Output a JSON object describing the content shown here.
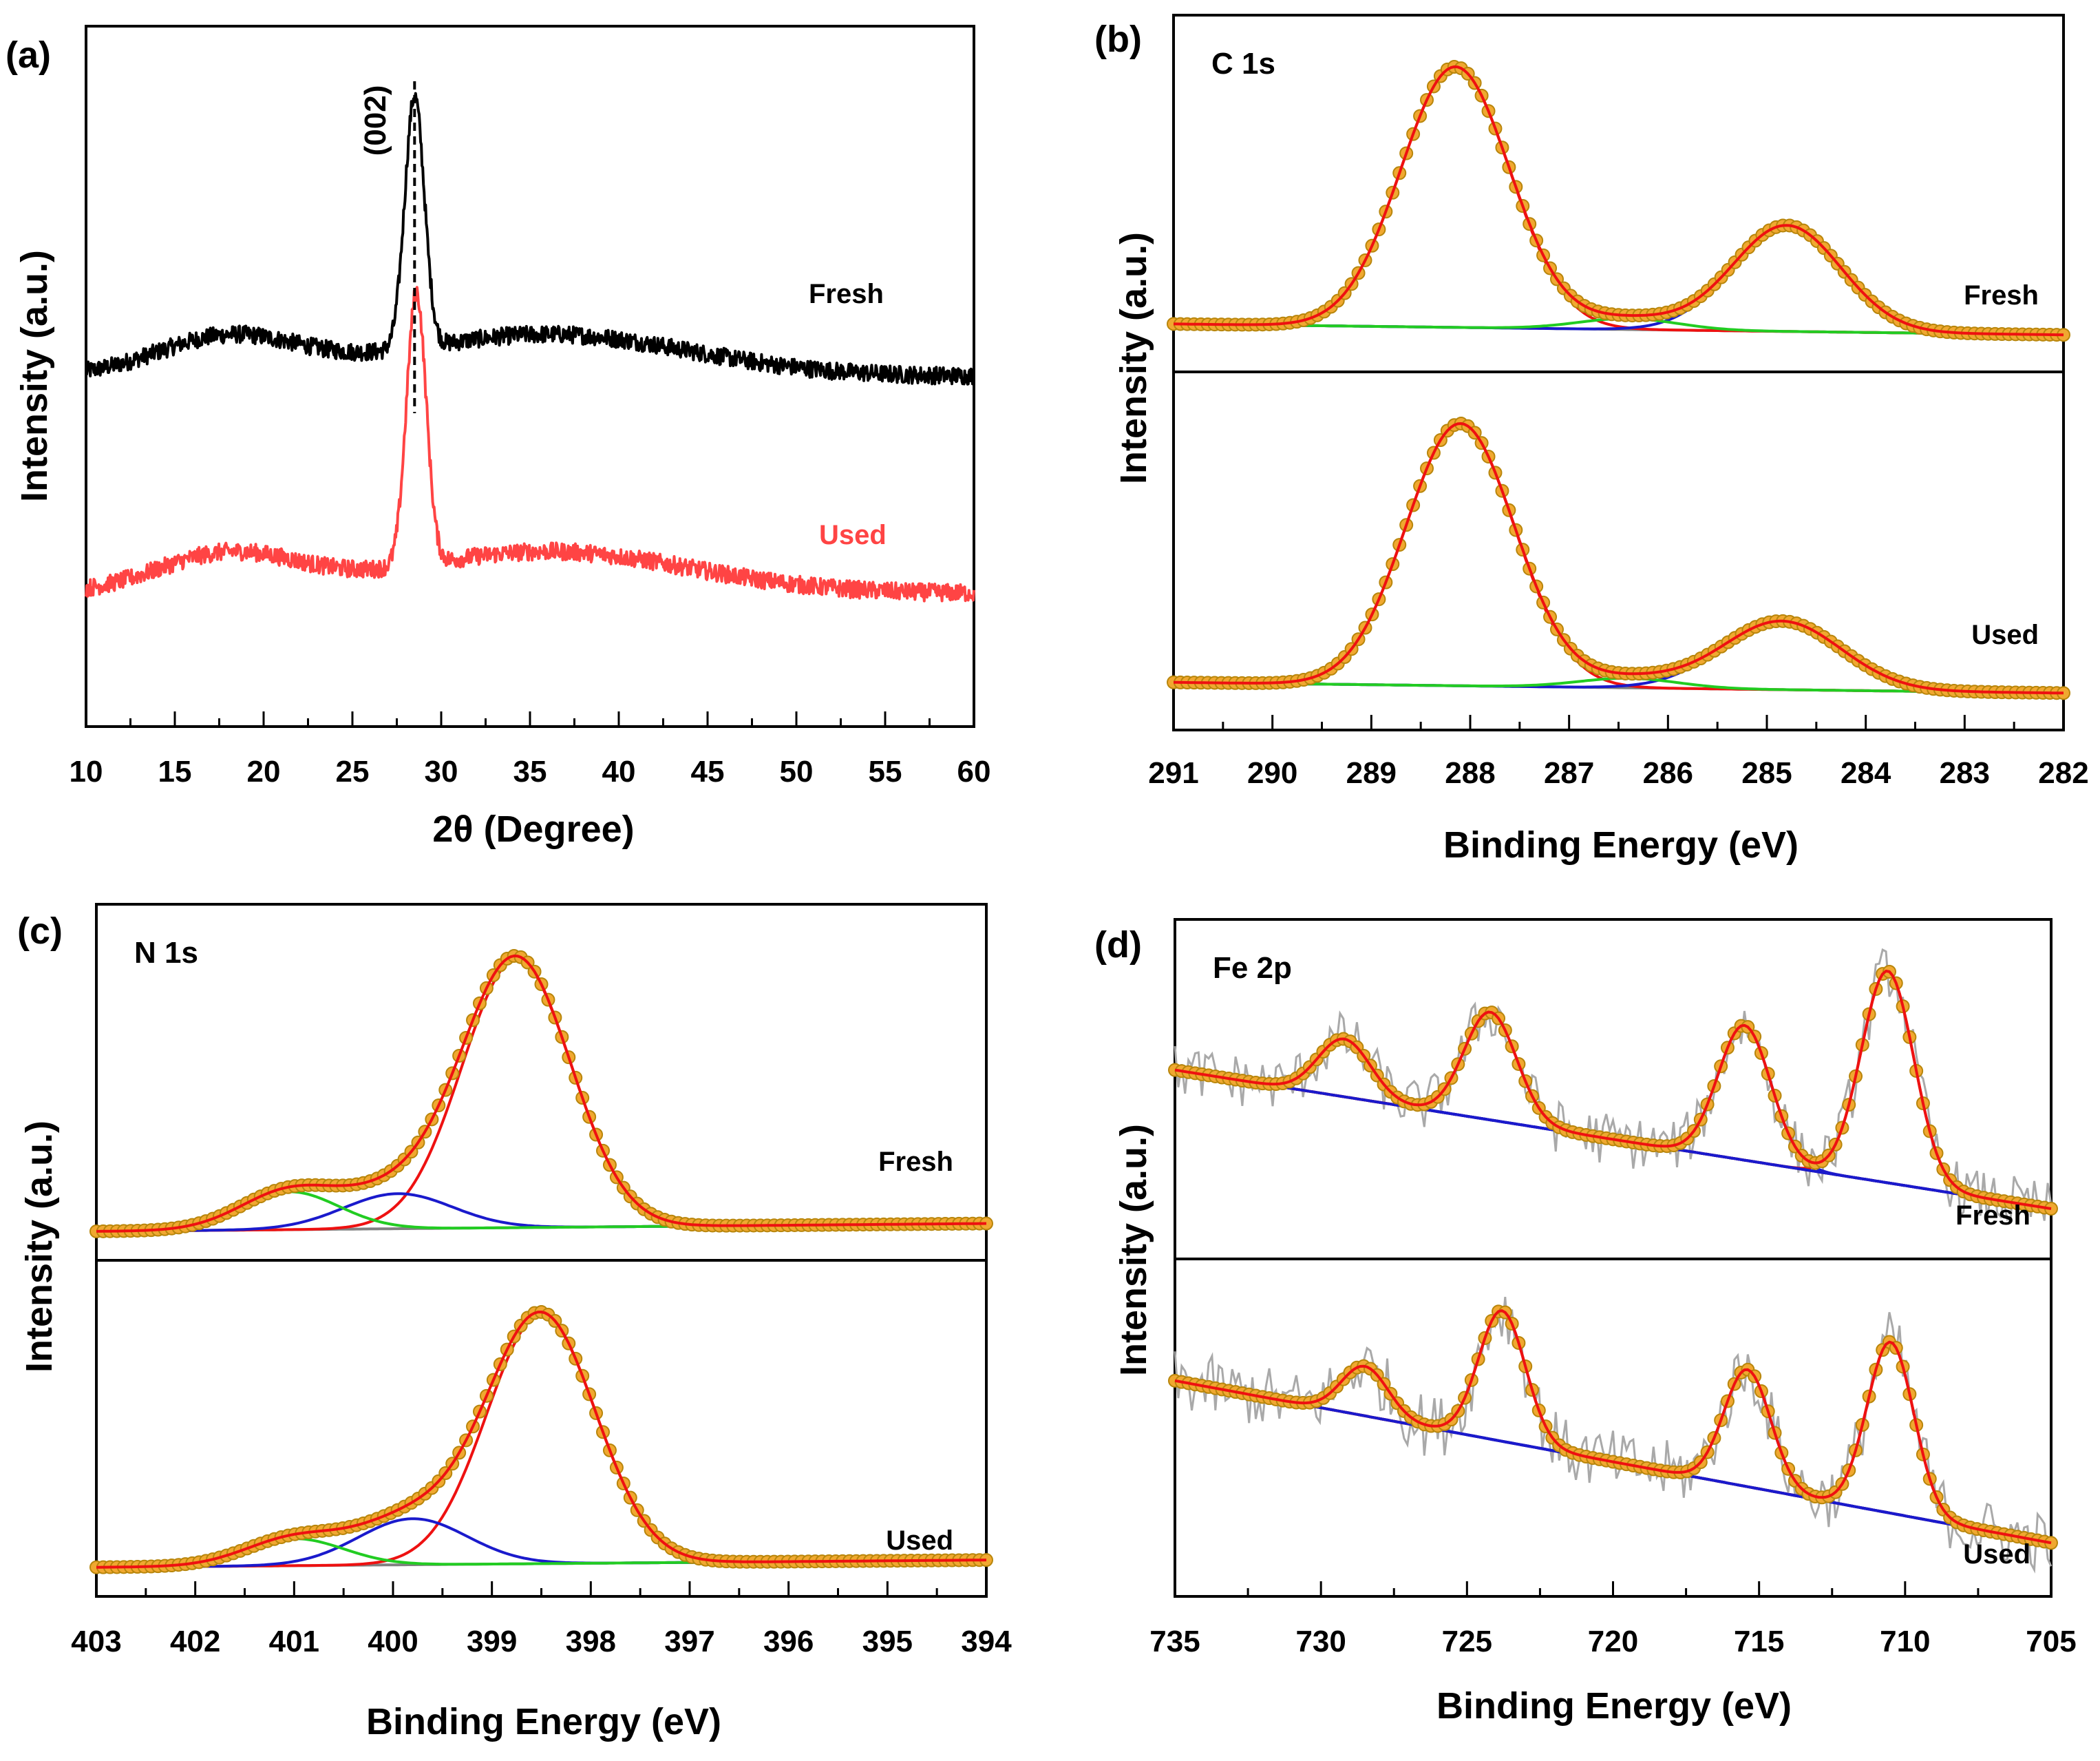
{
  "colors": {
    "black": "#000000",
    "used_xrd": "#ff4444",
    "peak_red": "#ee1111",
    "peak_blue": "#1a1acc",
    "peak_green": "#22cc22",
    "baseline": "#808080",
    "envelope": "#f0a830",
    "raw_fe": "#a9a9a9"
  },
  "chart_data": [
    {
      "panel": "(a)",
      "type": "line",
      "xlabel": "2θ (Degree)",
      "ylabel": "Intensity (a.u.)",
      "xlim": [
        10,
        60
      ],
      "ylim": [
        0,
        10
      ],
      "xticks": [
        10,
        15,
        20,
        25,
        30,
        35,
        40,
        45,
        50,
        55,
        60
      ],
      "annotation": "(002)",
      "annotation_x": 28.5,
      "series": [
        {
          "name": "Fresh",
          "color_key": "black",
          "baseline": 5.0,
          "peak_center": 28.5,
          "peak_height": 3.6,
          "peak_width": 0.55
        },
        {
          "name": "Used",
          "color_key": "used_xrd",
          "baseline": 1.9,
          "peak_center": 28.6,
          "peak_height": 3.9,
          "peak_width": 0.55
        }
      ]
    },
    {
      "panel": "(b)",
      "type": "line",
      "title": "C 1s",
      "xlabel": "Binding Energy (eV)",
      "ylabel": "Intensity (a.u.)",
      "xlim": [
        291,
        282
      ],
      "xticks": [
        291,
        290,
        289,
        288,
        287,
        286,
        285,
        284,
        283,
        282
      ],
      "subplots": [
        {
          "label": "Fresh",
          "background": [
            0.1,
            0.02
          ],
          "peaks": [
            {
              "color_key": "peak_red",
              "center": 288.15,
              "height": 4.3,
              "width": 0.55
            },
            {
              "color_key": "peak_blue",
              "center": 284.8,
              "height": 1.75,
              "width": 0.55
            },
            {
              "color_key": "peak_green",
              "center": 286.4,
              "height": 0.18,
              "width": 0.5
            }
          ]
        },
        {
          "label": "Used",
          "background": [
            0.1,
            0.02
          ],
          "peaks": [
            {
              "color_key": "peak_red",
              "center": 288.1,
              "height": 4.4,
              "width": 0.55
            },
            {
              "color_key": "peak_blue",
              "center": 284.85,
              "height": 1.15,
              "width": 0.6
            },
            {
              "color_key": "peak_green",
              "center": 286.4,
              "height": 0.16,
              "width": 0.5
            }
          ]
        }
      ]
    },
    {
      "panel": "(c)",
      "type": "line",
      "title": "N 1s",
      "xlabel": "Binding Energy (eV)",
      "ylabel": "Intensity (a.u.)",
      "xlim": [
        403,
        394
      ],
      "xticks": [
        403,
        402,
        401,
        400,
        399,
        398,
        397,
        396,
        395,
        394
      ],
      "subplots": [
        {
          "label": "Fresh",
          "background": [
            0.1,
            -0.015
          ],
          "peaks": [
            {
              "color_key": "peak_red",
              "center": 398.75,
              "height": 4.6,
              "width": 0.55
            },
            {
              "color_key": "peak_blue",
              "center": 399.95,
              "height": 0.6,
              "width": 0.55
            },
            {
              "color_key": "peak_green",
              "center": 401.05,
              "height": 0.65,
              "width": 0.5
            }
          ]
        },
        {
          "label": "Used",
          "background": [
            0.1,
            -0.015
          ],
          "peaks": [
            {
              "color_key": "peak_red",
              "center": 398.5,
              "height": 4.6,
              "width": 0.55
            },
            {
              "color_key": "peak_blue",
              "center": 399.8,
              "height": 0.85,
              "width": 0.55
            },
            {
              "color_key": "peak_green",
              "center": 401.0,
              "height": 0.5,
              "width": 0.5
            }
          ]
        }
      ]
    },
    {
      "panel": "(d)",
      "type": "line",
      "title": "Fe 2p",
      "xlabel": "Binding Energy (eV)",
      "ylabel": "Intensity (a.u.)",
      "xlim": [
        735,
        705
      ],
      "xticks": [
        735,
        730,
        725,
        720,
        715,
        710,
        705
      ],
      "subplots": [
        {
          "label": "Fresh",
          "background": [
            0.25,
            0.06
          ],
          "noise": 0.35,
          "peaks": [
            {
              "color_key": "peak_red",
              "center": 710.6,
              "height": 2.75,
              "width": 0.9
            },
            {
              "color_key": "peak_blue",
              "center": 715.5,
              "height": 1.75,
              "width": 0.9
            },
            {
              "color_key": "peak_red",
              "center": 724.2,
              "height": 1.4,
              "width": 0.9
            },
            {
              "color_key": "peak_blue",
              "center": 729.2,
              "height": 0.75,
              "width": 0.9
            }
          ]
        },
        {
          "label": "Used",
          "background": [
            0.25,
            0.06
          ],
          "noise": 0.35,
          "peaks": [
            {
              "color_key": "peak_red",
              "center": 710.5,
              "height": 1.9,
              "width": 0.8
            },
            {
              "color_key": "peak_blue",
              "center": 715.4,
              "height": 1.3,
              "width": 0.8
            },
            {
              "color_key": "peak_red",
              "center": 723.8,
              "height": 1.45,
              "width": 0.8
            },
            {
              "color_key": "peak_blue",
              "center": 728.5,
              "height": 0.55,
              "width": 0.8
            }
          ]
        }
      ]
    }
  ]
}
